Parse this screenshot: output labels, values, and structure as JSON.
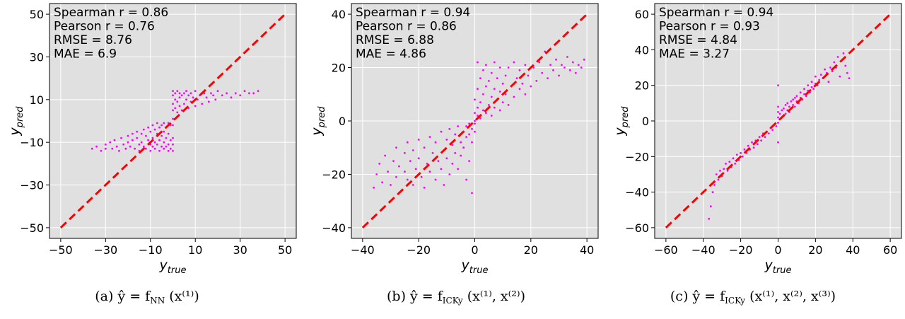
{
  "chart_data": [
    {
      "type": "scatter",
      "xlabel": "y_true",
      "ylabel": "y_pred",
      "xlim": [
        -55,
        55
      ],
      "ylim": [
        -55,
        55
      ],
      "xticks": [
        -50,
        -30,
        -10,
        10,
        30,
        50
      ],
      "yticks": [
        -50,
        -30,
        -10,
        10,
        30,
        50
      ],
      "grid": true,
      "stats": [
        "Spearman r = 0.86",
        "Pearson r = 0.76",
        "RMSE = 8.76",
        "MAE = 6.9"
      ],
      "diagonal": [
        -50,
        50
      ],
      "caption": {
        "prefix": "(a) ",
        "expr": "ŷ = f",
        "sub": "NN",
        "args": "(x⁽¹⁾)"
      },
      "point_color": "#ff00ff",
      "line_color": "#ff0000",
      "points": [
        [
          -36,
          -13
        ],
        [
          -34,
          -12
        ],
        [
          -32,
          -14
        ],
        [
          -30,
          -11
        ],
        [
          -30,
          -13
        ],
        [
          -28,
          -10
        ],
        [
          -27,
          -13
        ],
        [
          -26,
          -9
        ],
        [
          -25,
          -12
        ],
        [
          -24,
          -14
        ],
        [
          -23,
          -8
        ],
        [
          -22,
          -11
        ],
        [
          -21,
          -13
        ],
        [
          -20,
          -7
        ],
        [
          -20,
          -10
        ],
        [
          -19,
          -12
        ],
        [
          -18,
          -6
        ],
        [
          -18,
          -9
        ],
        [
          -17,
          -13
        ],
        [
          -16,
          -5
        ],
        [
          -16,
          -8
        ],
        [
          -15,
          -11
        ],
        [
          -15,
          -14
        ],
        [
          -14,
          -6
        ],
        [
          -14,
          -10
        ],
        [
          -13,
          -4
        ],
        [
          -13,
          -12
        ],
        [
          -12,
          -7
        ],
        [
          -12,
          -13
        ],
        [
          -11,
          -3
        ],
        [
          -11,
          -9
        ],
        [
          -10,
          -5
        ],
        [
          -10,
          -11
        ],
        [
          -10,
          -14
        ],
        [
          -9,
          -2
        ],
        [
          -9,
          -8
        ],
        [
          -9,
          -12
        ],
        [
          -8,
          -4
        ],
        [
          -8,
          -10
        ],
        [
          -8,
          -13
        ],
        [
          -7,
          -1
        ],
        [
          -7,
          -6
        ],
        [
          -7,
          -11
        ],
        [
          -6,
          -3
        ],
        [
          -6,
          -9
        ],
        [
          -6,
          -14
        ],
        [
          -5,
          -2
        ],
        [
          -5,
          -7
        ],
        [
          -5,
          -12
        ],
        [
          -4,
          -1
        ],
        [
          -4,
          -5
        ],
        [
          -4,
          -10
        ],
        [
          -4,
          -13
        ],
        [
          -3,
          -3
        ],
        [
          -3,
          -8
        ],
        [
          -3,
          -12
        ],
        [
          -2,
          -1
        ],
        [
          -2,
          -6
        ],
        [
          -2,
          -11
        ],
        [
          -2,
          -14
        ],
        [
          -1,
          -2
        ],
        [
          -1,
          -9
        ],
        [
          -1,
          -13
        ],
        [
          0,
          -14
        ],
        [
          0,
          -8
        ],
        [
          0,
          -2
        ],
        [
          0,
          5
        ],
        [
          0,
          12
        ],
        [
          0,
          14
        ],
        [
          0,
          1
        ],
        [
          0,
          -11
        ],
        [
          0,
          8
        ],
        [
          1,
          6
        ],
        [
          1,
          10
        ],
        [
          1,
          13
        ],
        [
          2,
          4
        ],
        [
          2,
          9
        ],
        [
          2,
          14
        ],
        [
          3,
          7
        ],
        [
          3,
          11
        ],
        [
          3,
          13
        ],
        [
          4,
          5
        ],
        [
          4,
          12
        ],
        [
          5,
          8
        ],
        [
          5,
          13
        ],
        [
          6,
          10
        ],
        [
          6,
          14
        ],
        [
          7,
          6
        ],
        [
          7,
          12
        ],
        [
          8,
          9
        ],
        [
          8,
          13
        ],
        [
          9,
          11
        ],
        [
          10,
          7
        ],
        [
          10,
          14
        ],
        [
          11,
          10
        ],
        [
          12,
          12
        ],
        [
          13,
          8
        ],
        [
          14,
          13
        ],
        [
          15,
          11
        ],
        [
          16,
          9
        ],
        [
          17,
          13
        ],
        [
          18,
          12
        ],
        [
          19,
          10
        ],
        [
          20,
          14
        ],
        [
          22,
          12
        ],
        [
          24,
          13
        ],
        [
          26,
          11
        ],
        [
          28,
          13
        ],
        [
          30,
          12
        ],
        [
          32,
          14
        ],
        [
          34,
          13
        ],
        [
          36,
          13
        ],
        [
          38,
          14
        ]
      ]
    },
    {
      "type": "scatter",
      "xlabel": "y_true",
      "ylabel": "y_pred",
      "xlim": [
        -44,
        44
      ],
      "ylim": [
        -44,
        44
      ],
      "xticks": [
        -40,
        -20,
        0,
        20,
        40
      ],
      "yticks": [
        -40,
        -20,
        0,
        20,
        40
      ],
      "grid": true,
      "stats": [
        "Spearman r = 0.94",
        "Pearson r = 0.86",
        "RMSE = 6.88",
        "MAE = 4.86"
      ],
      "diagonal": [
        -40,
        40
      ],
      "caption": {
        "prefix": "(b) ",
        "expr": "ŷ = f",
        "sub": "ICKy",
        "args": "(x⁽¹⁾, x⁽²⁾)"
      },
      "point_color": "#ff00ff",
      "line_color": "#ff0000",
      "points": [
        [
          -36,
          -25
        ],
        [
          -35,
          -20
        ],
        [
          -34,
          -16
        ],
        [
          -33,
          -23
        ],
        [
          -32,
          -13
        ],
        [
          -31,
          -19
        ],
        [
          -30,
          -24
        ],
        [
          -29,
          -15
        ],
        [
          -28,
          -10
        ],
        [
          -28,
          -21
        ],
        [
          -27,
          -17
        ],
        [
          -26,
          -26
        ],
        [
          -25,
          -12
        ],
        [
          -25,
          -19
        ],
        [
          -24,
          -8
        ],
        [
          -24,
          -22
        ],
        [
          -23,
          -15
        ],
        [
          -22,
          -11
        ],
        [
          -22,
          -24
        ],
        [
          -21,
          -18
        ],
        [
          -20,
          -7
        ],
        [
          -20,
          -14
        ],
        [
          -19,
          -21
        ],
        [
          -18,
          -10
        ],
        [
          -18,
          -25
        ],
        [
          -17,
          -16
        ],
        [
          -16,
          -6
        ],
        [
          -16,
          -19
        ],
        [
          -15,
          -12
        ],
        [
          -14,
          -22
        ],
        [
          -14,
          -8
        ],
        [
          -13,
          -15
        ],
        [
          -12,
          -4
        ],
        [
          -12,
          -18
        ],
        [
          -11,
          -11
        ],
        [
          -11,
          -24
        ],
        [
          -10,
          -7
        ],
        [
          -10,
          -14
        ],
        [
          -9,
          -3
        ],
        [
          -9,
          -20
        ],
        [
          -8,
          -9
        ],
        [
          -8,
          -16
        ],
        [
          -7,
          -5
        ],
        [
          -7,
          -12
        ],
        [
          -6,
          -2
        ],
        [
          -6,
          -18
        ],
        [
          -5,
          -8
        ],
        [
          -5,
          -13
        ],
        [
          -4,
          -4
        ],
        [
          -4,
          -10
        ],
        [
          -3,
          -2
        ],
        [
          -3,
          -6
        ],
        [
          -3,
          -22
        ],
        [
          -2,
          -1
        ],
        [
          -2,
          -5
        ],
        [
          -2,
          -15
        ],
        [
          -1,
          -3
        ],
        [
          -1,
          -8
        ],
        [
          -1,
          -27
        ],
        [
          0,
          -4
        ],
        [
          0,
          0
        ],
        [
          0,
          3
        ],
        [
          0,
          8
        ],
        [
          0,
          -1
        ],
        [
          1,
          2
        ],
        [
          1,
          5
        ],
        [
          1,
          12
        ],
        [
          1,
          22
        ],
        [
          2,
          1
        ],
        [
          2,
          7
        ],
        [
          2,
          16
        ],
        [
          3,
          4
        ],
        [
          3,
          10
        ],
        [
          3,
          19
        ],
        [
          4,
          3
        ],
        [
          4,
          13
        ],
        [
          4,
          21
        ],
        [
          5,
          6
        ],
        [
          5,
          15
        ],
        [
          6,
          2
        ],
        [
          6,
          9
        ],
        [
          6,
          18
        ],
        [
          7,
          5
        ],
        [
          7,
          12
        ],
        [
          7,
          22
        ],
        [
          8,
          8
        ],
        [
          8,
          16
        ],
        [
          9,
          4
        ],
        [
          9,
          11
        ],
        [
          9,
          20
        ],
        [
          10,
          7
        ],
        [
          10,
          14
        ],
        [
          11,
          17
        ],
        [
          11,
          10
        ],
        [
          12,
          6
        ],
        [
          12,
          20
        ],
        [
          13,
          13
        ],
        [
          14,
          9
        ],
        [
          14,
          22
        ],
        [
          15,
          16
        ],
        [
          16,
          12
        ],
        [
          16,
          19
        ],
        [
          17,
          14
        ],
        [
          18,
          21
        ],
        [
          18,
          10
        ],
        [
          19,
          17
        ],
        [
          20,
          13
        ],
        [
          21,
          20
        ],
        [
          22,
          15
        ],
        [
          23,
          22
        ],
        [
          24,
          18
        ],
        [
          25,
          26
        ],
        [
          26,
          16
        ],
        [
          27,
          21
        ],
        [
          28,
          19
        ],
        [
          29,
          23
        ],
        [
          30,
          17
        ],
        [
          31,
          21
        ],
        [
          32,
          20
        ],
        [
          33,
          24
        ],
        [
          34,
          19
        ],
        [
          35,
          22
        ],
        [
          36,
          18
        ],
        [
          37,
          21
        ],
        [
          38,
          20
        ],
        [
          39,
          23
        ]
      ]
    },
    {
      "type": "scatter",
      "xlabel": "y_true",
      "ylabel": "y_pred",
      "xlim": [
        -66,
        66
      ],
      "ylim": [
        -66,
        66
      ],
      "xticks": [
        -60,
        -40,
        -20,
        0,
        20,
        40,
        60
      ],
      "yticks": [
        -60,
        -40,
        -20,
        0,
        20,
        40,
        60
      ],
      "grid": true,
      "stats": [
        "Spearman r = 0.94",
        "Pearson r = 0.93",
        "RMSE = 4.84",
        "MAE = 3.27"
      ],
      "diagonal": [
        -60,
        60
      ],
      "caption": {
        "prefix": "(c) ",
        "expr": "ŷ = f",
        "sub": "ICKy",
        "args": "(x⁽¹⁾, x⁽²⁾, x⁽³⁾)"
      },
      "point_color": "#ff00ff",
      "line_color": "#ff0000",
      "points": [
        [
          -37,
          -55
        ],
        [
          -36,
          -48
        ],
        [
          -35,
          -40
        ],
        [
          -34,
          -36
        ],
        [
          -33,
          -30
        ],
        [
          -32,
          -33
        ],
        [
          -31,
          -28
        ],
        [
          -30,
          -31
        ],
        [
          -29,
          -27
        ],
        [
          -28,
          -24
        ],
        [
          -27,
          -28
        ],
        [
          -26,
          -23
        ],
        [
          -25,
          -26
        ],
        [
          -24,
          -21
        ],
        [
          -23,
          -24
        ],
        [
          -22,
          -19
        ],
        [
          -21,
          -22
        ],
        [
          -20,
          -18
        ],
        [
          -19,
          -20
        ],
        [
          -18,
          -16
        ],
        [
          -17,
          -18
        ],
        [
          -16,
          -14
        ],
        [
          -15,
          -16
        ],
        [
          -14,
          -12
        ],
        [
          -13,
          -15
        ],
        [
          -12,
          -11
        ],
        [
          -11,
          -13
        ],
        [
          -10,
          -9
        ],
        [
          -9,
          -11
        ],
        [
          -8,
          -7
        ],
        [
          -7,
          -9
        ],
        [
          -6,
          -6
        ],
        [
          -5,
          -7
        ],
        [
          -4,
          -4
        ],
        [
          -3,
          -5
        ],
        [
          -2,
          -2
        ],
        [
          -1,
          -3
        ],
        [
          0,
          -1
        ],
        [
          0,
          2
        ],
        [
          0,
          8
        ],
        [
          0,
          20
        ],
        [
          0,
          -12
        ],
        [
          0,
          5
        ],
        [
          1,
          1
        ],
        [
          1,
          4
        ],
        [
          2,
          2
        ],
        [
          2,
          6
        ],
        [
          3,
          3
        ],
        [
          3,
          7
        ],
        [
          4,
          4
        ],
        [
          4,
          9
        ],
        [
          5,
          6
        ],
        [
          5,
          10
        ],
        [
          6,
          5
        ],
        [
          6,
          8
        ],
        [
          7,
          7
        ],
        [
          7,
          11
        ],
        [
          8,
          9
        ],
        [
          8,
          12
        ],
        [
          9,
          8
        ],
        [
          9,
          13
        ],
        [
          10,
          11
        ],
        [
          10,
          14
        ],
        [
          11,
          10
        ],
        [
          12,
          13
        ],
        [
          12,
          16
        ],
        [
          13,
          12
        ],
        [
          14,
          15
        ],
        [
          14,
          18
        ],
        [
          15,
          14
        ],
        [
          16,
          17
        ],
        [
          16,
          20
        ],
        [
          17,
          16
        ],
        [
          18,
          19
        ],
        [
          18,
          22
        ],
        [
          19,
          18
        ],
        [
          20,
          21
        ],
        [
          20,
          25
        ],
        [
          21,
          20
        ],
        [
          22,
          23
        ],
        [
          23,
          26
        ],
        [
          24,
          24
        ],
        [
          25,
          29
        ],
        [
          26,
          27
        ],
        [
          27,
          22
        ],
        [
          28,
          30
        ],
        [
          29,
          28
        ],
        [
          30,
          33
        ],
        [
          31,
          30
        ],
        [
          32,
          36
        ],
        [
          33,
          25
        ],
        [
          34,
          34
        ],
        [
          35,
          38
        ],
        [
          36,
          31
        ],
        [
          37,
          27
        ],
        [
          38,
          24
        ]
      ]
    }
  ]
}
